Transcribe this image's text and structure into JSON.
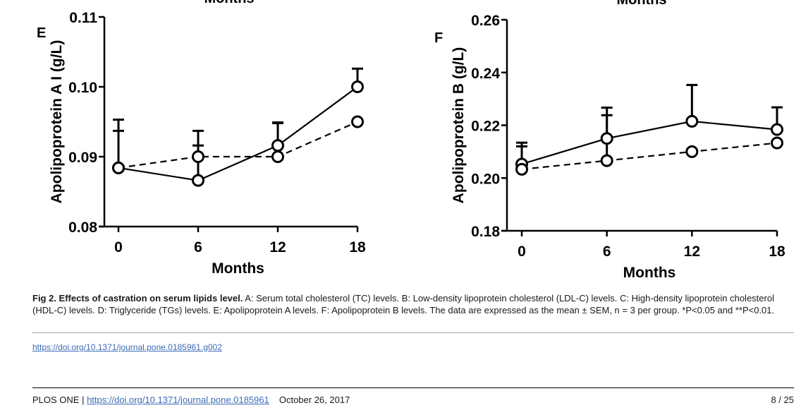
{
  "figure": {
    "cropped_top_labels": [
      "Months",
      "Months"
    ],
    "panels": [
      "E",
      "F"
    ]
  },
  "chart_data": [
    {
      "type": "line",
      "panel_label": "E",
      "title": "",
      "xlabel": "Months",
      "ylabel": "Apolipoprotein A I (g/L)",
      "x": [
        0,
        6,
        12,
        18
      ],
      "xticks": [
        "0",
        "6",
        "12",
        "18"
      ],
      "ylim": [
        0.08,
        0.11
      ],
      "yticks": [
        "0.08",
        "0.09",
        "0.10",
        "0.11"
      ],
      "grid": false,
      "legend": "none",
      "series": [
        {
          "name": "solid",
          "style": "solid",
          "values": [
            0.0884,
            0.0866,
            0.0916,
            0.1
          ],
          "error_upper": [
            0.0953,
            0.0937,
            0.0949,
            0.1026
          ]
        },
        {
          "name": "dashed",
          "style": "dashed",
          "values": [
            0.0884,
            0.09,
            0.09,
            0.095
          ],
          "error_upper": [
            0.0937,
            0.0916,
            0.0948,
            0.095
          ]
        }
      ]
    },
    {
      "type": "line",
      "panel_label": "F",
      "title": "",
      "xlabel": "Months",
      "ylabel": "Apolipoprotein B (g/L)",
      "x": [
        0,
        6,
        12,
        18
      ],
      "xticks": [
        "0",
        "6",
        "12",
        "18"
      ],
      "ylim": [
        0.18,
        0.26
      ],
      "yticks": [
        "0.18",
        "0.20",
        "0.22",
        "0.24",
        "0.26"
      ],
      "grid": false,
      "legend": "none",
      "series": [
        {
          "name": "solid",
          "style": "solid",
          "values": [
            0.2053,
            0.215,
            0.2215,
            0.2184
          ],
          "error_upper": [
            0.2134,
            0.2267,
            0.2353,
            0.2268
          ]
        },
        {
          "name": "dashed",
          "style": "dashed",
          "values": [
            0.2033,
            0.2066,
            0.21,
            0.2133
          ],
          "error_upper": [
            0.212,
            0.2238,
            0.21,
            0.2133
          ]
        }
      ]
    }
  ],
  "caption": {
    "label": "Fig 2. Effects of castration on serum lipids level.",
    "text": " A: Serum total cholesterol (TC) levels. B: Low-density lipoprotein cholesterol (LDL-C) levels. C: High-density lipoprotein cholesterol (HDL-C) levels. D: Triglyceride (TGs) levels. E: Apolipoprotein A levels. F: Apolipoprotein B levels. The data are expressed as the mean ± SEM, n = 3 per group. *P<0.05 and **P<0.01."
  },
  "figure_link": "https://doi.org/10.1371/journal.pone.0185961.g002",
  "footer": {
    "journal": "PLOS ONE | ",
    "doi_link": "https://doi.org/10.1371/journal.pone.0185961",
    "date": "October 26, 2017",
    "page": "8 / 25"
  }
}
